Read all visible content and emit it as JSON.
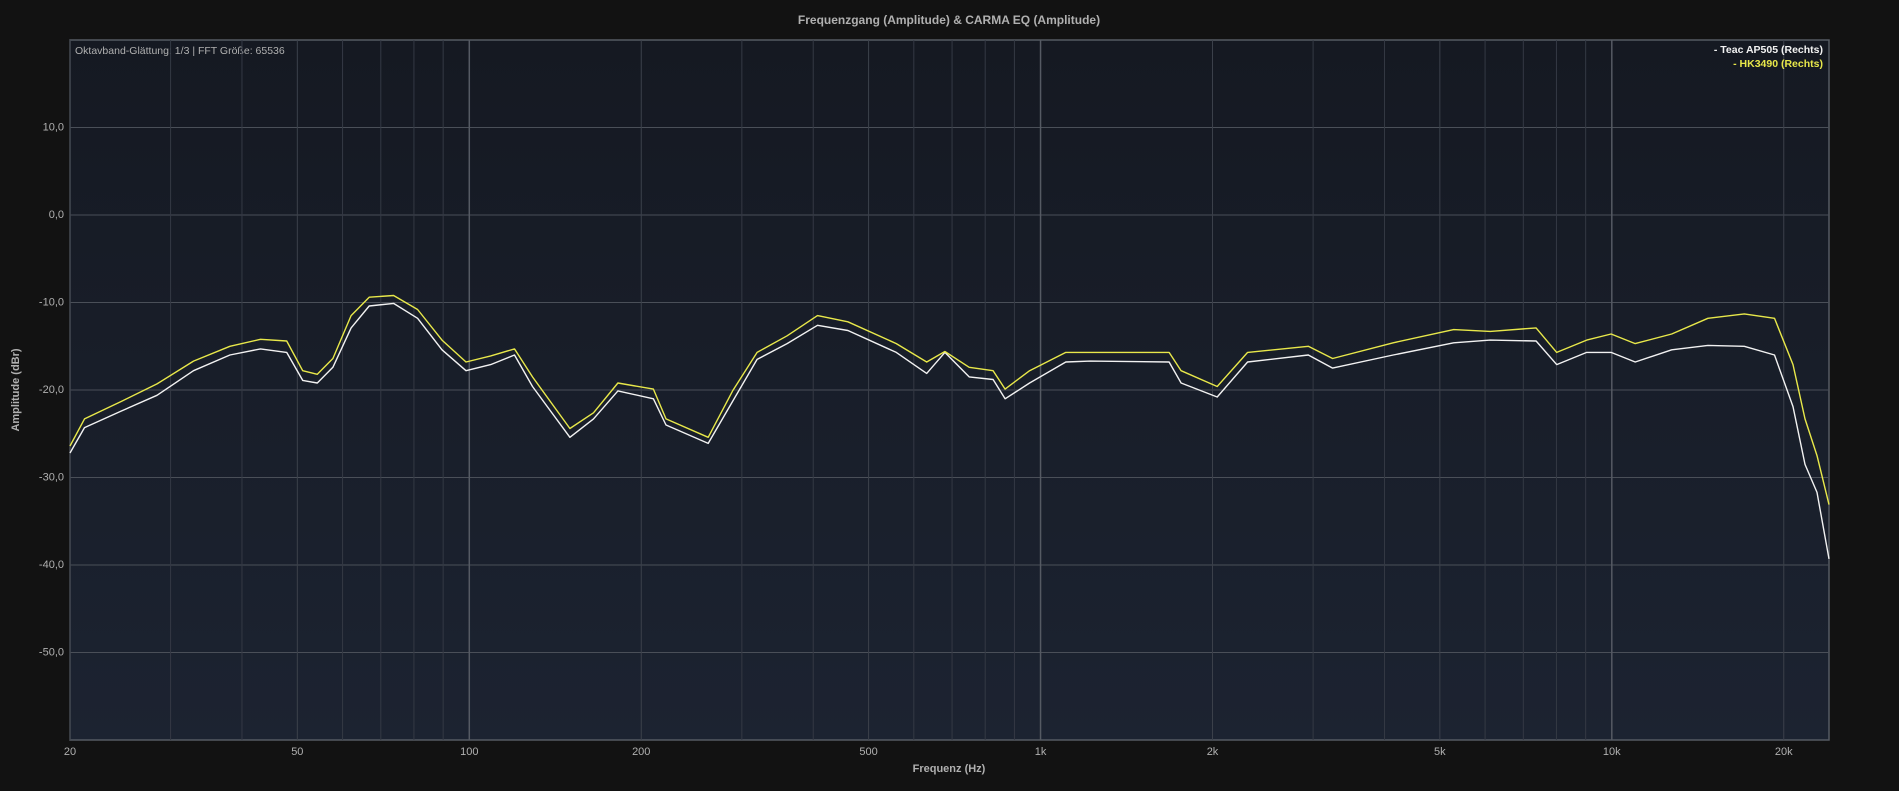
{
  "chart_data": {
    "type": "line",
    "title": "Frequenzgang (Amplitude) & CARMA EQ (Amplitude)",
    "annotation": "Oktavband-Glättung: 1/3 | FFT Größe: 65536",
    "x_label": "Frequenz (Hz)",
    "y_label": "Amplitude (dBr)",
    "xscale": "log",
    "grid": true,
    "legend": "top-right",
    "xlim": [
      20,
      24000
    ],
    "ylim": [
      -60,
      20
    ],
    "xticks": [
      20,
      50,
      100,
      200,
      500,
      {
        "value": 1000,
        "label": "1k"
      },
      {
        "value": 2000,
        "label": "2k"
      },
      {
        "value": 5000,
        "label": "5k"
      },
      {
        "value": 10000,
        "label": "10k"
      },
      {
        "value": 20000,
        "label": "20k"
      }
    ],
    "xminorticks": [
      30,
      40,
      60,
      70,
      80,
      90,
      300,
      400,
      600,
      700,
      800,
      900,
      3000,
      4000,
      6000,
      7000,
      8000,
      9000
    ],
    "yticks": [
      {
        "value": 10,
        "label": "10,0"
      },
      {
        "value": 0,
        "label": "0,0"
      },
      {
        "value": -10,
        "label": "-10,0"
      },
      {
        "value": -20,
        "label": "-20,0"
      },
      {
        "value": -30,
        "label": "-30,0"
      },
      {
        "value": -40,
        "label": "-40,0"
      },
      {
        "value": -50,
        "label": "-50,0"
      }
    ],
    "x": [
      20,
      21.2,
      24.6,
      28.4,
      32.9,
      38.1,
      43.1,
      47.9,
      51.1,
      54.2,
      57.7,
      62.1,
      66.8,
      73.7,
      81.2,
      89.6,
      98.7,
      109,
      120,
      129,
      150,
      165,
      182,
      210,
      221,
      262,
      289,
      319,
      360,
      407,
      460,
      559,
      632,
      680,
      750,
      826,
      867,
      957,
      1107,
      1222,
      1679,
      1762,
      2038,
      2304,
      2943,
      3245,
      4143,
      5288,
      6128,
      7369,
      8008,
      9038,
      9972,
      10990,
      12730,
      14730,
      17060,
      19270,
      20760,
      21790,
      22870,
      24000
    ],
    "series": [
      {
        "name": "- Teac AP505 (Rechts)",
        "color": "#f2f2f2",
        "values": [
          -27.2,
          -24.3,
          -22.4,
          -20.6,
          -17.8,
          -16.0,
          -15.3,
          -15.7,
          -18.9,
          -19.2,
          -17.4,
          -12.9,
          -10.4,
          -10.1,
          -11.8,
          -15.4,
          -17.8,
          -17.1,
          -16.0,
          -19.6,
          -25.4,
          -23.3,
          -20.1,
          -21.0,
          -24.0,
          -26.1,
          -21.3,
          -16.5,
          -14.7,
          -12.6,
          -13.2,
          -15.7,
          -18.1,
          -15.7,
          -18.5,
          -18.8,
          -21.0,
          -19.2,
          -16.8,
          -16.7,
          -16.8,
          -19.2,
          -20.8,
          -16.8,
          -16.0,
          -17.5,
          -16.0,
          -14.6,
          -14.3,
          -14.4,
          -17.1,
          -15.7,
          -15.7,
          -16.8,
          -15.4,
          -14.9,
          -15.0,
          -16.0,
          -21.9,
          -28.5,
          -31.7,
          -39.3
        ]
      },
      {
        "name": "- HK3490 (Rechts)",
        "color": "#e8e84a",
        "values": [
          -26.4,
          -23.3,
          -21.3,
          -19.3,
          -16.7,
          -15.0,
          -14.2,
          -14.4,
          -17.8,
          -18.2,
          -16.4,
          -11.5,
          -9.4,
          -9.2,
          -10.8,
          -14.3,
          -16.8,
          -16.1,
          -15.3,
          -18.5,
          -24.4,
          -22.6,
          -19.2,
          -19.9,
          -23.3,
          -25.4,
          -20.1,
          -15.7,
          -13.8,
          -11.5,
          -12.2,
          -14.7,
          -16.8,
          -15.6,
          -17.4,
          -17.8,
          -19.9,
          -17.8,
          -15.7,
          -15.7,
          -15.7,
          -17.8,
          -19.6,
          -15.7,
          -15.0,
          -16.4,
          -14.6,
          -13.1,
          -13.3,
          -12.9,
          -15.7,
          -14.3,
          -13.6,
          -14.7,
          -13.6,
          -11.8,
          -11.3,
          -11.8,
          -17.1,
          -23.3,
          -27.5,
          -33.1
        ]
      }
    ]
  }
}
